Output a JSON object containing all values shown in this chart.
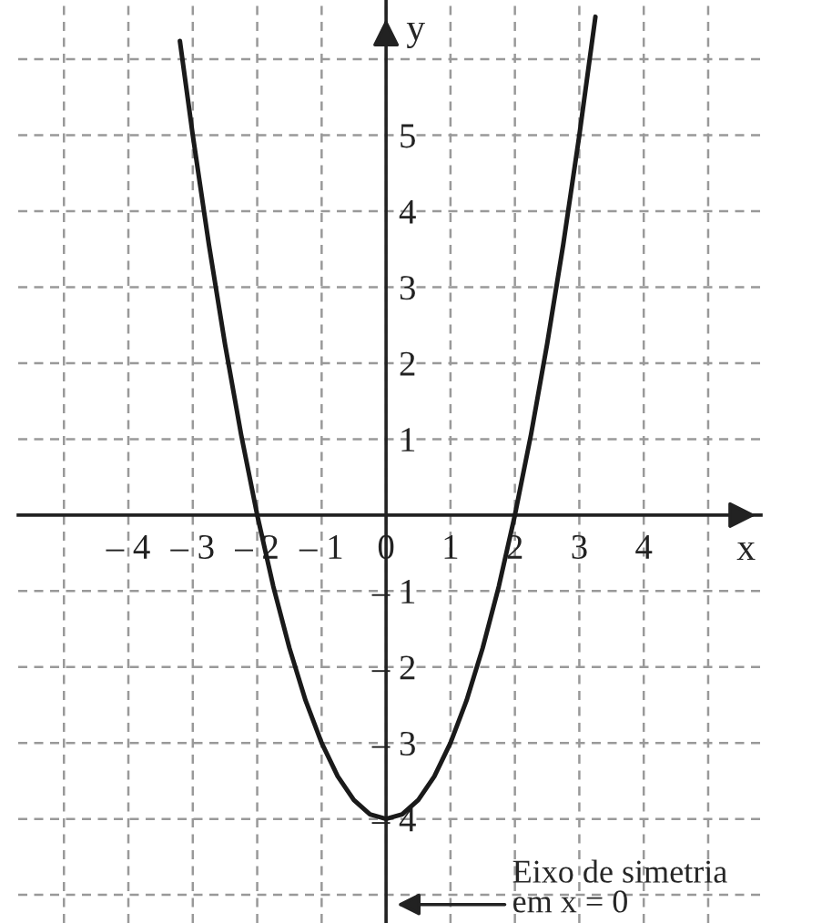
{
  "chart_data": {
    "type": "line",
    "x": [
      -3.2,
      -3.0,
      -2.75,
      -2.5,
      -2.25,
      -2.0,
      -1.75,
      -1.5,
      -1.25,
      -1.0,
      -0.75,
      -0.5,
      -0.25,
      0,
      0.25,
      0.5,
      0.75,
      1.0,
      1.25,
      1.5,
      1.75,
      2.0,
      2.25,
      2.5,
      2.75,
      3.0,
      3.25
    ],
    "values": [
      6.24,
      5.0,
      3.56,
      2.25,
      1.06,
      0,
      -0.94,
      -1.75,
      -2.44,
      -3.0,
      -3.44,
      -3.75,
      -3.94,
      -4.0,
      -3.94,
      -3.75,
      -3.44,
      -3.0,
      -2.44,
      -1.75,
      -0.94,
      0,
      1.06,
      2.25,
      3.56,
      5.0,
      6.56
    ],
    "color": "#1a1a1a",
    "line_style": "solid",
    "marker": "none",
    "xlabel": "x",
    "ylabel": "y",
    "xlim": [
      -5.71,
      5.82
    ],
    "ylim": [
      -5.37,
      6.78
    ],
    "xticks": [
      {
        "value": -5,
        "label": null
      },
      {
        "value": -4,
        "label": "– 4"
      },
      {
        "value": -3,
        "label": "– 3"
      },
      {
        "value": -2,
        "label": "– 2"
      },
      {
        "value": -1,
        "label": "– 1"
      },
      0,
      1,
      2,
      3,
      4,
      {
        "value": 5,
        "label": null
      }
    ],
    "yticks": [
      {
        "value": -5,
        "label": null
      },
      {
        "value": -4,
        "label": "– 4"
      },
      {
        "value": -3,
        "label": "– 3"
      },
      {
        "value": -2,
        "label": "– 2"
      },
      {
        "value": -1,
        "label": "– 1"
      },
      1,
      2,
      3,
      4,
      5,
      {
        "value": 6,
        "label": null
      }
    ],
    "grid": true,
    "annotations": [
      "Eixo de simetria\nem x = 0"
    ]
  }
}
